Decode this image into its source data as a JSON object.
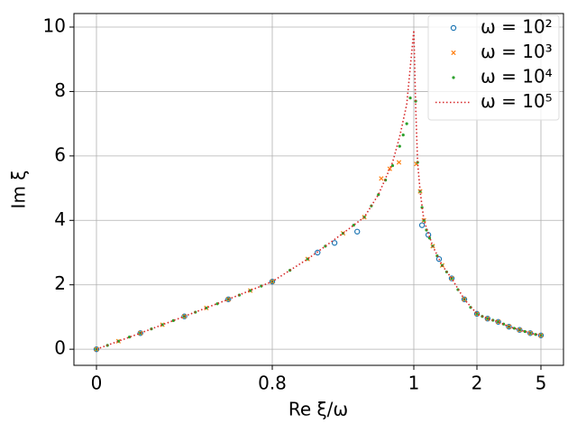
{
  "chart_data": {
    "type": "scatter",
    "x_label": "Re ξ/ω",
    "y_label": "Im ξ",
    "xlim": [
      -0.1,
      6.06
    ],
    "ylim": [
      -0.5,
      10.42
    ],
    "xticks": [
      0,
      0.8,
      1,
      2,
      5
    ],
    "yticks": [
      0,
      2,
      4,
      6,
      8,
      10
    ],
    "grid": true,
    "legend": "upper right",
    "series": [
      {
        "name": "ω = 10²",
        "color": "#1f77b4",
        "marker": "circle",
        "x": [
          0,
          0.2,
          0.4,
          0.6,
          0.8,
          0.864,
          0.888,
          0.92,
          1.13,
          1.23,
          1.4,
          1.6,
          1.8,
          2,
          2.5,
          3,
          3.5,
          4,
          4.5,
          5
        ],
        "values": [
          0,
          0.5,
          1.02,
          1.55,
          2.1,
          3.0,
          3.3,
          3.65,
          3.85,
          3.55,
          2.8,
          2.2,
          1.55,
          1.1,
          0.95,
          0.85,
          0.7,
          0.6,
          0.5,
          0.43
        ]
      },
      {
        "name": "ω = 10³",
        "color": "#ff7f0e",
        "marker": "x",
        "x": [
          0,
          0.1,
          0.2,
          0.3,
          0.4,
          0.5,
          0.6,
          0.7,
          0.8,
          0.85,
          0.9,
          0.93,
          0.954,
          0.966,
          0.979,
          1.04,
          1.1,
          1.16,
          1.3,
          1.45,
          1.6,
          1.8,
          2,
          2.5,
          3,
          3.5,
          4,
          4.5,
          5
        ],
        "values": [
          0,
          0.25,
          0.5,
          0.76,
          1.02,
          1.28,
          1.55,
          1.82,
          2.1,
          2.8,
          3.6,
          4.1,
          5.3,
          5.6,
          5.8,
          5.75,
          4.9,
          4.0,
          3.2,
          2.6,
          2.2,
          1.55,
          1.1,
          0.95,
          0.85,
          0.7,
          0.6,
          0.5,
          0.43
        ]
      },
      {
        "name": "ω = 10⁴",
        "color": "#2ca02c",
        "marker": "dot",
        "x": [
          0,
          0.05,
          0.1,
          0.15,
          0.2,
          0.25,
          0.3,
          0.35,
          0.4,
          0.45,
          0.5,
          0.55,
          0.6,
          0.65,
          0.7,
          0.75,
          0.8,
          0.825,
          0.85,
          0.875,
          0.9,
          0.915,
          0.93,
          0.94,
          0.95,
          0.96,
          0.97,
          0.98,
          0.985,
          0.99,
          0.995,
          1.03,
          1.06,
          1.1,
          1.13,
          1.16,
          1.2,
          1.25,
          1.3,
          1.37,
          1.45,
          1.52,
          1.6,
          1.7,
          1.8,
          1.9,
          2,
          2.25,
          2.5,
          2.75,
          3,
          3.25,
          3.5,
          3.75,
          4,
          4.25,
          4.5,
          4.75,
          5
        ],
        "values": [
          0,
          0.12,
          0.25,
          0.38,
          0.5,
          0.63,
          0.76,
          0.89,
          1.02,
          1.15,
          1.28,
          1.41,
          1.55,
          1.68,
          1.82,
          1.96,
          2.1,
          2.45,
          2.8,
          3.2,
          3.6,
          3.85,
          4.1,
          4.45,
          4.8,
          5.25,
          5.7,
          6.3,
          6.65,
          7.0,
          7.8,
          7.7,
          5.8,
          4.9,
          4.4,
          4.0,
          3.7,
          3.45,
          3.2,
          2.9,
          2.6,
          2.4,
          2.2,
          1.85,
          1.55,
          1.3,
          1.1,
          1.02,
          0.95,
          0.9,
          0.85,
          0.78,
          0.7,
          0.65,
          0.6,
          0.55,
          0.5,
          0.46,
          0.43
        ]
      },
      {
        "name": "ω = 10⁵",
        "color": "#d62728",
        "marker": "dotted",
        "x": [
          0,
          0.2,
          0.4,
          0.6,
          0.8,
          0.85,
          0.9,
          0.93,
          0.95,
          0.97,
          0.98,
          0.99,
          1,
          1.03,
          1.06,
          1.1,
          1.16,
          1.3,
          1.45,
          1.6,
          1.8,
          2,
          2.5,
          3,
          3.5,
          4,
          4.5,
          5
        ],
        "values": [
          0,
          0.5,
          1.02,
          1.55,
          2.1,
          2.8,
          3.6,
          4.1,
          4.8,
          5.8,
          6.6,
          7.6,
          9.9,
          7.5,
          5.8,
          4.9,
          4.0,
          3.2,
          2.6,
          2.2,
          1.55,
          1.1,
          0.95,
          0.85,
          0.7,
          0.6,
          0.5,
          0.43
        ]
      }
    ]
  }
}
